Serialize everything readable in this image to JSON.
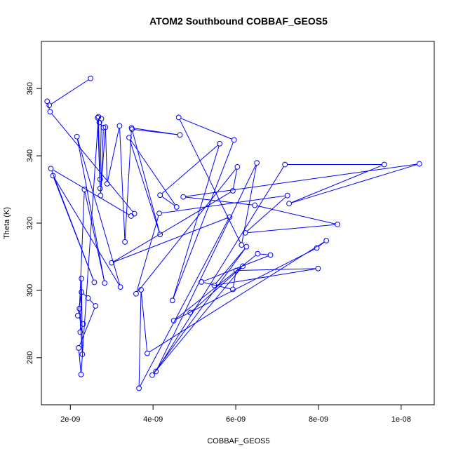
{
  "chart_data": {
    "type": "line",
    "title": "ATOM2 Southbound COBBAF_GEOS5",
    "xlabel": "COBBAF_GEOS5",
    "ylabel": "Theta (K)",
    "xlim": [
      1.3e-09,
      1.08e-08
    ],
    "ylim": [
      266,
      374
    ],
    "x_ticks": [
      2e-09,
      4e-09,
      6e-09,
      8e-09,
      1e-08
    ],
    "x_tick_labels": [
      "2e-09",
      "4e-09",
      "6e-09",
      "8e-09",
      "1e-08"
    ],
    "y_ticks": [
      280,
      300,
      320,
      340,
      360
    ],
    "y_tick_labels": [
      "280",
      "300",
      "320",
      "340",
      "360"
    ],
    "grid": false,
    "legend": "none",
    "colors": {
      "series": "#0000ff",
      "axis": "#000000",
      "background": "#ffffff"
    },
    "markers": "open-circle",
    "series": [
      {
        "name": "",
        "points": [
          [
            2.49e-09,
            363.0
          ],
          [
            1.49e-09,
            355.0
          ],
          [
            1.44e-09,
            356.2
          ],
          [
            1.51e-09,
            353.1
          ],
          [
            3.55e-09,
            322.8
          ],
          [
            3.47e-09,
            322.1
          ],
          [
            1.53e-09,
            336.2
          ],
          [
            2.58e-09,
            302.4
          ],
          [
            1.58e-09,
            334.1
          ],
          [
            3.21e-09,
            301.0
          ],
          [
            2.16e-09,
            345.7
          ],
          [
            2.83e-09,
            302.2
          ],
          [
            2.34e-09,
            330.0
          ],
          [
            2.22e-09,
            294.6
          ],
          [
            2.29e-09,
            281.0
          ],
          [
            2.27e-09,
            303.5
          ],
          [
            2.24e-09,
            287.6
          ],
          [
            2.31e-09,
            290.0
          ],
          [
            2.18e-09,
            292.5
          ],
          [
            2.27e-09,
            299.5
          ],
          [
            2.43e-09,
            297.7
          ],
          [
            2.61e-09,
            295.4
          ],
          [
            2.2e-09,
            282.9
          ],
          [
            2.26e-09,
            275.0
          ],
          [
            2.68e-09,
            351.6
          ],
          [
            2.72e-09,
            330.3
          ],
          [
            2.66e-09,
            351.3
          ],
          [
            2.72e-09,
            333.0
          ],
          [
            2.75e-09,
            351.0
          ],
          [
            2.7e-09,
            349.9
          ],
          [
            2.8e-09,
            348.4
          ],
          [
            2.73e-09,
            328.2
          ],
          [
            2.85e-09,
            348.5
          ],
          [
            2.89e-09,
            331.7
          ],
          [
            3.19e-09,
            348.9
          ],
          [
            3.32e-09,
            314.4
          ],
          [
            3.48e-09,
            348.3
          ],
          [
            4.65e-09,
            346.2
          ],
          [
            3.49e-09,
            347.9
          ],
          [
            4.17e-09,
            316.6
          ],
          [
            3.42e-09,
            345.4
          ],
          [
            4.57e-09,
            324.8
          ],
          [
            4.17e-09,
            328.3
          ],
          [
            5.61e-09,
            343.6
          ],
          [
            4.47e-09,
            297.0
          ],
          [
            5.96e-09,
            344.7
          ],
          [
            4.62e-09,
            351.4
          ],
          [
            6.14e-09,
            313.5
          ],
          [
            6.51e-09,
            337.9
          ],
          [
            4.07e-09,
            275.9
          ],
          [
            7.19e-09,
            337.4
          ],
          [
            9.59e-09,
            337.4
          ],
          [
            7.29e-09,
            325.8
          ],
          [
            1.044e-08,
            337.6
          ],
          [
            4.73e-09,
            327.8
          ],
          [
            6.46e-09,
            325.3
          ],
          [
            8.46e-09,
            319.6
          ],
          [
            6.23e-09,
            317.1
          ],
          [
            7.25e-09,
            328.2
          ],
          [
            4.15e-09,
            322.9
          ],
          [
            3.59e-09,
            299.0
          ],
          [
            6.04e-09,
            336.7
          ],
          [
            5.93e-09,
            329.6
          ],
          [
            3e-09,
            308.2
          ],
          [
            5.85e-09,
            321.8
          ],
          [
            3.66e-09,
            270.9
          ],
          [
            3.71e-09,
            300.2
          ],
          [
            3.86e-09,
            281.3
          ],
          [
            8.19e-09,
            314.8
          ],
          [
            7.96e-09,
            312.6
          ],
          [
            4.5e-09,
            291.0
          ],
          [
            6.53e-09,
            310.9
          ],
          [
            6.84e-09,
            310.5
          ],
          [
            5.17e-09,
            302.5
          ],
          [
            5.93e-09,
            300.3
          ],
          [
            6.01e-09,
            305.9
          ],
          [
            7.99e-09,
            306.5
          ],
          [
            5.48e-09,
            301.5
          ],
          [
            6.26e-09,
            313.0
          ],
          [
            3.98e-09,
            274.8
          ],
          [
            6.17e-09,
            307.2
          ],
          [
            4.9e-09,
            293.4
          ]
        ]
      }
    ]
  }
}
